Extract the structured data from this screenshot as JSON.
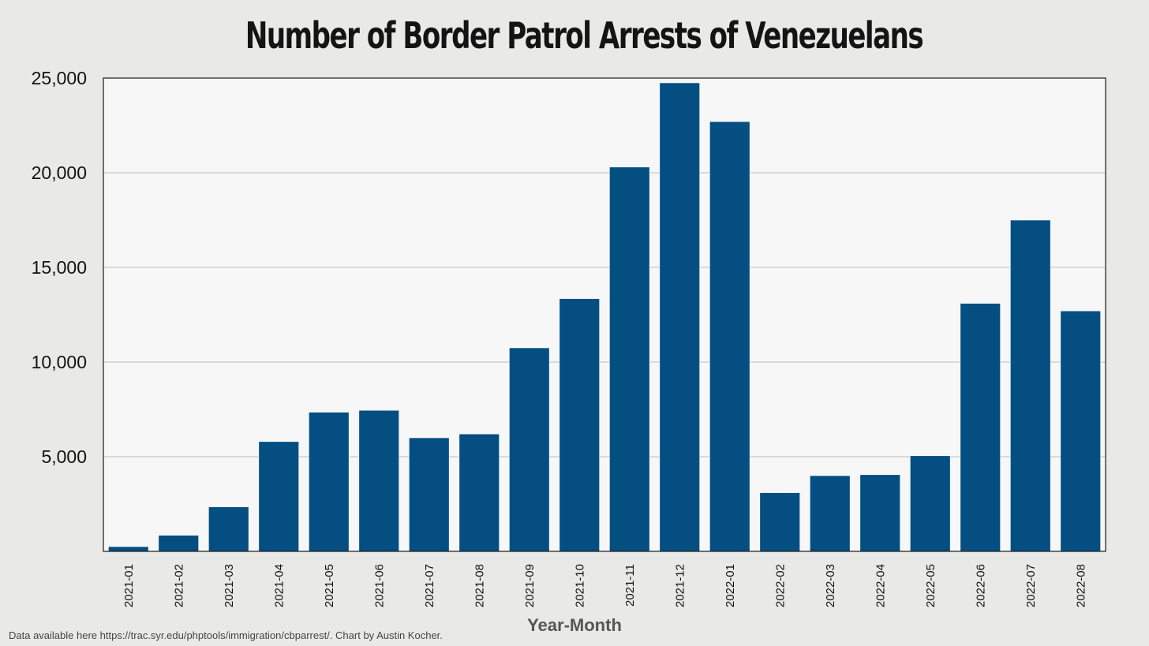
{
  "chart_data": {
    "type": "bar",
    "title": "Number of Border Patrol Arrests of Venezuelans",
    "xlabel": "Year-Month",
    "ylabel": "",
    "ylim": [
      0,
      25000
    ],
    "yticks": [
      5000,
      10000,
      15000,
      20000,
      25000
    ],
    "ytick_labels": [
      "5,000",
      "10,000",
      "15,000",
      "20,000",
      "25,000"
    ],
    "grid": true,
    "legend": "none",
    "categories": [
      "2021-01",
      "2021-02",
      "2021-03",
      "2021-04",
      "2021-05",
      "2021-06",
      "2021-07",
      "2021-08",
      "2021-09",
      "2021-10",
      "2021-11",
      "2021-12",
      "2022-01",
      "2022-02",
      "2022-03",
      "2022-04",
      "2022-05",
      "2022-06",
      "2022-07",
      "2022-08"
    ],
    "values": [
      250,
      850,
      2350,
      5800,
      7350,
      7450,
      6000,
      6200,
      10750,
      13350,
      20300,
      24750,
      22700,
      3100,
      4000,
      4050,
      5050,
      13100,
      17500,
      12700
    ],
    "colors": {
      "bar": "#044e82",
      "plot_background": "#f6f7f6",
      "gridline": "#bdbdbd",
      "frame": "#1a1a1a"
    }
  },
  "footnote": "Data available here https://trac.syr.edu/phptools/immigration/cbparrest/. Chart by Austin Kocher."
}
